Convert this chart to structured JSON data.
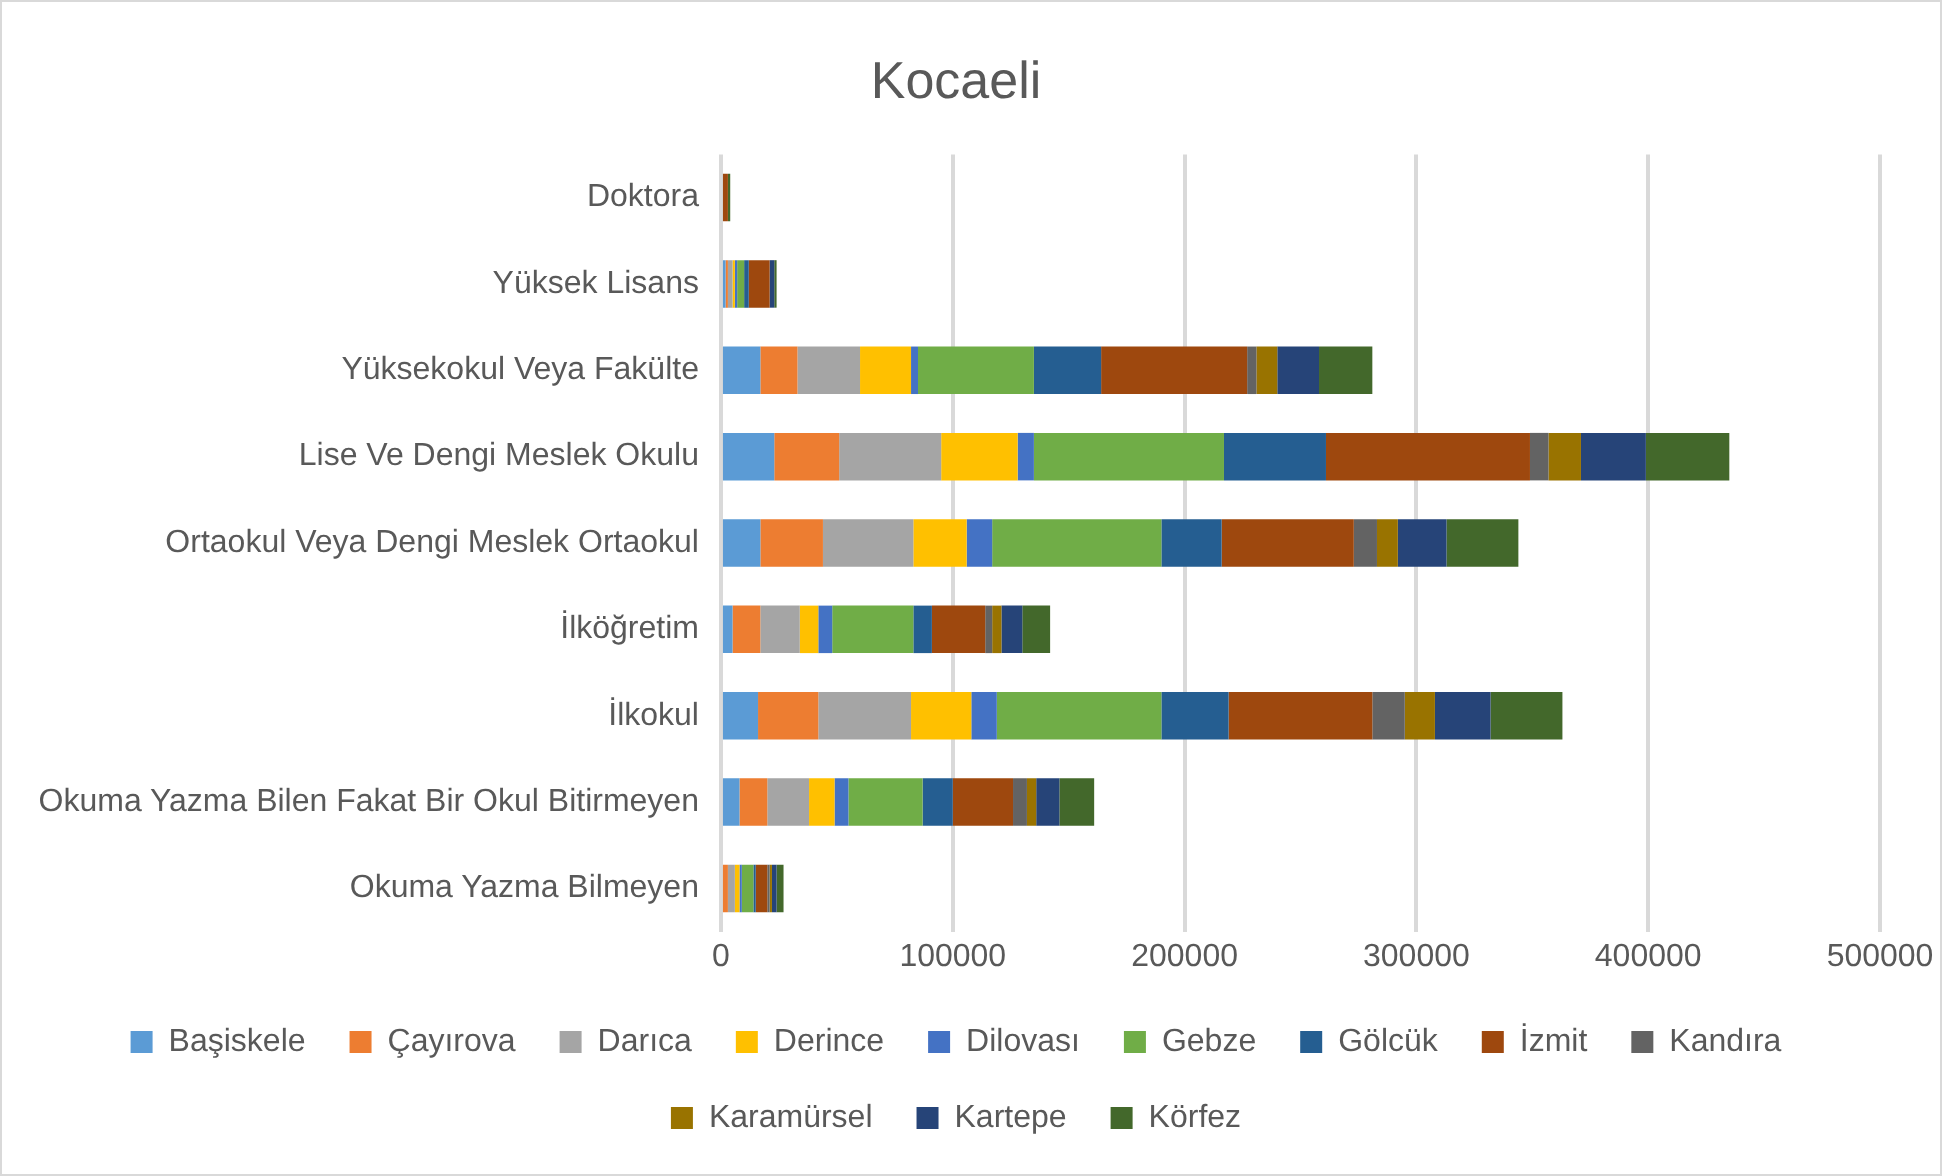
{
  "chart_data": {
    "type": "bar",
    "title": "Kocaeli",
    "orientation": "horizontal",
    "stacked": true,
    "categories": [
      "Doktora",
      "Yüksek Lisans",
      "Yüksekokul Veya Fakülte",
      "Lise Ve Dengi Meslek Okulu",
      "Ortaokul Veya Dengi Meslek Ortaokul",
      "İlköğretim",
      "İlkokul",
      "Okuma Yazma Bilen Fakat Bir Okul Bitirmeyen",
      "Okuma Yazma Bilmeyen"
    ],
    "series": [
      {
        "name": "Başiskele",
        "color": "#5b9bd5",
        "values": [
          null,
          2000,
          17000,
          23000,
          17000,
          5000,
          16000,
          8000,
          null
        ]
      },
      {
        "name": "Çayırova",
        "color": "#ed7d31",
        "values": [
          null,
          1000,
          16000,
          28000,
          27000,
          12000,
          26000,
          12000,
          3000
        ]
      },
      {
        "name": "Darıca",
        "color": "#a5a5a5",
        "values": [
          null,
          2000,
          27000,
          44000,
          39000,
          17000,
          40000,
          18000,
          3000
        ]
      },
      {
        "name": "Derince",
        "color": "#ffc000",
        "values": [
          null,
          1000,
          22000,
          33000,
          23000,
          8000,
          26000,
          11000,
          2000
        ]
      },
      {
        "name": "Dilovası",
        "color": "#4472c4",
        "values": [
          null,
          1000,
          3000,
          7000,
          11000,
          6000,
          11000,
          6000,
          1000
        ]
      },
      {
        "name": "Gebze",
        "color": "#70ad47",
        "values": [
          null,
          3000,
          50000,
          82000,
          73000,
          35000,
          71000,
          32000,
          5000
        ]
      },
      {
        "name": "Gölcük",
        "color": "#255e91",
        "values": [
          null,
          2000,
          29000,
          44000,
          26000,
          8000,
          29000,
          13000,
          1000
        ]
      },
      {
        "name": "İzmit",
        "color": "#9e480e",
        "values": [
          3000,
          9000,
          63000,
          88000,
          57000,
          23000,
          62000,
          26000,
          5000
        ]
      },
      {
        "name": "Kandıra",
        "color": "#636363",
        "values": [
          null,
          null,
          4000,
          8000,
          10000,
          3000,
          14000,
          6000,
          1000
        ]
      },
      {
        "name": "Karamürsel",
        "color": "#997300",
        "values": [
          null,
          null,
          9000,
          14000,
          9000,
          4000,
          13000,
          4000,
          1000
        ]
      },
      {
        "name": "Kartepe",
        "color": "#264478",
        "values": [
          null,
          2000,
          18000,
          28000,
          21000,
          9000,
          24000,
          10000,
          2000
        ]
      },
      {
        "name": "Körfez",
        "color": "#43682b",
        "values": [
          1000,
          1000,
          23000,
          36000,
          31000,
          12000,
          31000,
          15000,
          3000
        ]
      }
    ],
    "xlim": [
      0,
      500000
    ],
    "xticks": [
      0,
      100000,
      200000,
      300000,
      400000,
      500000
    ],
    "grid": "x",
    "legend": "bottom"
  }
}
